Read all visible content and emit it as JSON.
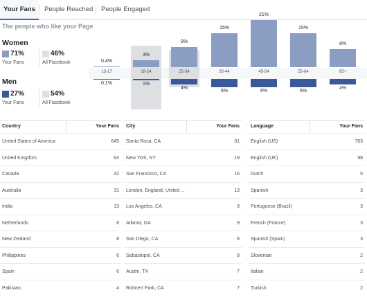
{
  "tabs": [
    {
      "label": "Your Fans",
      "active": true
    },
    {
      "label": "People Reached",
      "active": false
    },
    {
      "label": "People Engaged",
      "active": false
    }
  ],
  "subtitle": "The people who like your Page",
  "women": {
    "label": "Women",
    "your_fans_pct": "71%",
    "your_fans_label": "Your Fans",
    "all_fb_pct": "46%",
    "all_fb_label": "All Facebook"
  },
  "men": {
    "label": "Men",
    "your_fans_pct": "27%",
    "your_fans_label": "Your Fans",
    "all_fb_pct": "54%",
    "all_fb_label": "All Facebook"
  },
  "colors": {
    "women": "#8b9dc3",
    "men": "#3b5998",
    "all_facebook": "#dddfe2",
    "accent": "#4267b2"
  },
  "chart_data": {
    "type": "bar",
    "categories": [
      "13-17",
      "18-24",
      "25-34",
      "35-44",
      "45-54",
      "55-64",
      "65+"
    ],
    "series": [
      {
        "name": "Women",
        "values": [
          0.4,
          3,
          9,
          15,
          21,
          15,
          8
        ],
        "labels": [
          "0.4%",
          "3%",
          "9%",
          "15%",
          "21%",
          "15%",
          "8%"
        ]
      },
      {
        "name": "Men",
        "values": [
          0.1,
          1,
          4,
          6,
          6,
          6,
          4
        ],
        "labels": [
          "0.1%",
          "1%",
          "4%",
          "6%",
          "6%",
          "6%",
          "4%"
        ]
      }
    ]
  },
  "tables": [
    {
      "col1": "Country",
      "col2": "Your Fans",
      "rows": [
        [
          "United States of America",
          "645"
        ],
        [
          "United Kingdom",
          "64"
        ],
        [
          "Canada",
          "42"
        ],
        [
          "Australia",
          "31"
        ],
        [
          "India",
          "13"
        ],
        [
          "Netherlands",
          "8"
        ],
        [
          "New Zealand",
          "8"
        ],
        [
          "Philippines",
          "6"
        ],
        [
          "Spain",
          "6"
        ],
        [
          "Pakistan",
          "4"
        ]
      ]
    },
    {
      "col1": "City",
      "col2": "Your Fans",
      "rows": [
        [
          "Santa Rosa, CA",
          "31"
        ],
        [
          "New York, NY",
          "19"
        ],
        [
          "San Francisco, CA",
          "16"
        ],
        [
          "London, England, United ...",
          "13"
        ],
        [
          "Los Angeles, CA",
          "9"
        ],
        [
          "Atlanta, GA",
          "9"
        ],
        [
          "San Diego, CA",
          "8"
        ],
        [
          "Sebastopol, CA",
          "8"
        ],
        [
          "Austin, TX",
          "7"
        ],
        [
          "Rohnert Park, CA",
          "7"
        ]
      ]
    },
    {
      "col1": "Language",
      "col2": "Your Fans",
      "rows": [
        [
          "English (US)",
          "763"
        ],
        [
          "English (UK)",
          "98"
        ],
        [
          "Dutch",
          "5"
        ],
        [
          "Spanish",
          "3"
        ],
        [
          "Portuguese (Brazil)",
          "3"
        ],
        [
          "French (France)",
          "3"
        ],
        [
          "Spanish (Spain)",
          "3"
        ],
        [
          "Slovenian",
          "2"
        ],
        [
          "Italian",
          "2"
        ],
        [
          "Turkish",
          "2"
        ]
      ]
    }
  ]
}
